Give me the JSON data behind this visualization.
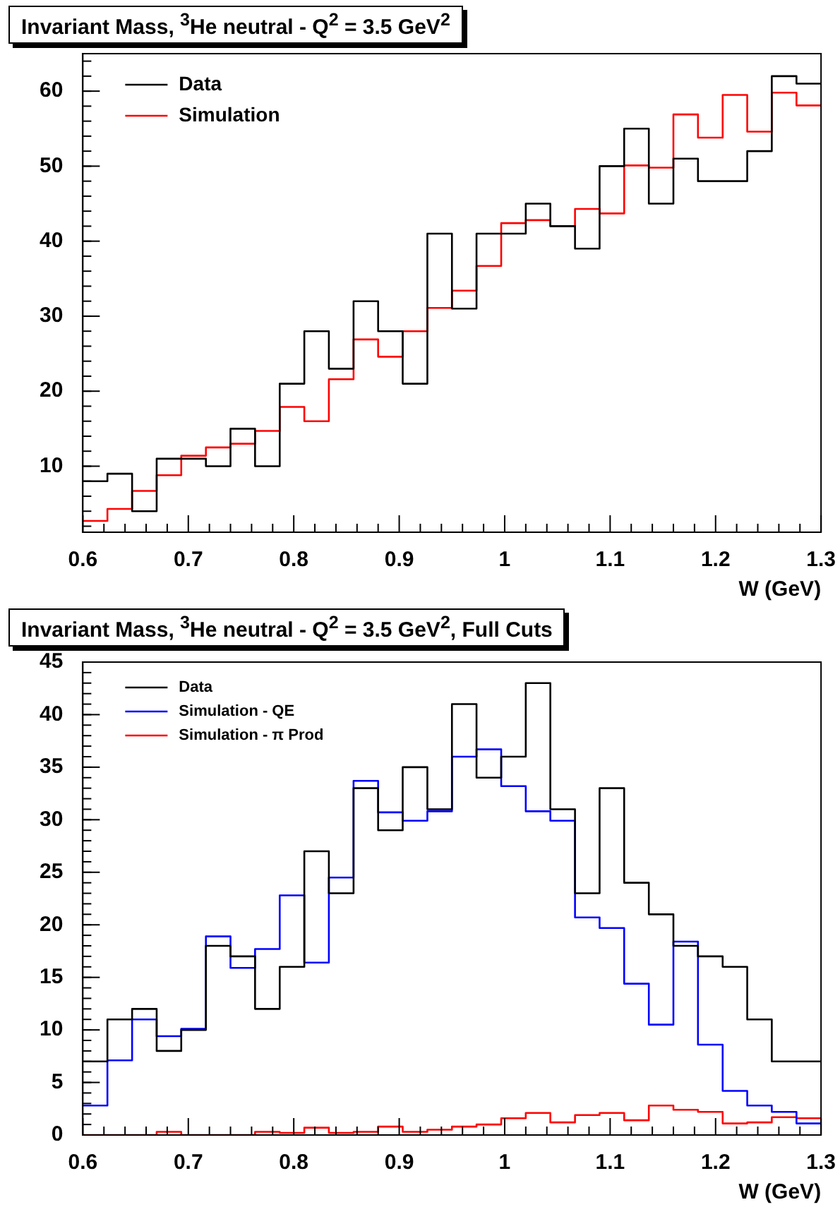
{
  "chart_data": [
    {
      "type": "histogram",
      "title": "Invariant Mass,  $^{3}$He neutral - Q$^{2}$ = 3.5 GeV$^{2}$",
      "xlabel": "W (GeV)",
      "bins": [
        0.6,
        0.6233,
        0.6467,
        0.67,
        0.6933,
        0.7167,
        0.74,
        0.7633,
        0.7867,
        0.81,
        0.8333,
        0.8567,
        0.88,
        0.9033,
        0.9267,
        0.95,
        0.9733,
        0.9967,
        1.02,
        1.0433,
        1.0667,
        1.09,
        1.1133,
        1.1367,
        1.16,
        1.1833,
        1.2067,
        1.23,
        1.2533,
        1.2767,
        1.3
      ],
      "series": [
        {
          "name": "Data",
          "color": "#000000",
          "values": [
            8,
            9,
            4,
            11,
            11,
            10,
            15,
            10,
            21,
            28,
            23,
            32,
            28,
            21,
            41,
            31,
            41,
            41,
            45,
            42,
            39,
            50,
            55,
            45,
            51,
            48,
            48,
            52,
            62,
            61
          ]
        },
        {
          "name": "Simulation",
          "color": "#ff0000",
          "values": [
            2.7,
            4.3,
            6.7,
            8.8,
            11.4,
            12.5,
            13,
            14.7,
            17.9,
            16,
            21.6,
            26.9,
            24.6,
            28,
            31.1,
            33.4,
            36.7,
            42.4,
            42.8,
            42,
            44.3,
            43.7,
            50.1,
            49.8,
            56.9,
            53.8,
            59.5,
            54.6,
            59.8,
            58.1
          ]
        }
      ],
      "xlim": [
        0.6,
        1.3
      ],
      "xticks": [
        0.6,
        0.7,
        0.8,
        0.9,
        {
          "value": 1,
          "label": "1"
        },
        1.1,
        1.2,
        1.3
      ],
      "ylim": [
        1.2,
        65
      ],
      "yticks": [
        10,
        20,
        30,
        40,
        50,
        60
      ],
      "legend": "top left"
    },
    {
      "type": "histogram",
      "title": "Invariant Mass,  $^{3}$He neutral - Q$^{2}$ = 3.5 GeV$^{2}$, Full Cuts",
      "xlabel": "W (GeV)",
      "bins": [
        0.6,
        0.6233,
        0.6467,
        0.67,
        0.6933,
        0.7167,
        0.74,
        0.7633,
        0.7867,
        0.81,
        0.8333,
        0.8567,
        0.88,
        0.9033,
        0.9267,
        0.95,
        0.9733,
        0.9967,
        1.02,
        1.0433,
        1.0667,
        1.09,
        1.1133,
        1.1367,
        1.16,
        1.1833,
        1.2067,
        1.23,
        1.2533,
        1.2767,
        1.3
      ],
      "series": [
        {
          "name": "Data",
          "color": "#000000",
          "values": [
            7,
            11,
            12,
            8,
            10,
            18,
            17,
            12,
            16,
            27,
            23,
            33,
            29,
            35,
            31,
            41,
            34,
            36,
            43,
            31,
            23,
            33,
            24,
            21,
            18,
            17,
            16,
            11,
            7,
            7
          ]
        },
        {
          "name": "Simulation - QE",
          "color": "#0000ff",
          "values": [
            2.8,
            7.1,
            11,
            9.4,
            10.1,
            18.9,
            15.9,
            17.7,
            22.8,
            16.4,
            24.5,
            33.7,
            30.7,
            29.9,
            30.8,
            36,
            36.7,
            33.2,
            30.8,
            29.9,
            20.7,
            19.7,
            14.4,
            10.5,
            18.4,
            8.6,
            4.2,
            2.8,
            2.2,
            1.1
          ]
        },
        {
          "name": "Simulation - π Prod",
          "color": "#ff0000",
          "values": [
            0,
            0,
            0,
            0.3,
            0,
            0,
            0,
            0.3,
            0.2,
            0.7,
            0.2,
            0.3,
            0.8,
            0.3,
            0.5,
            0.8,
            1,
            1.6,
            2.1,
            1.2,
            1.9,
            2.1,
            1.4,
            2.8,
            2.4,
            2.2,
            1.1,
            1.2,
            1.7,
            1.6
          ]
        }
      ],
      "xlim": [
        0.6,
        1.3
      ],
      "xticks": [
        0.6,
        0.7,
        0.8,
        0.9,
        {
          "value": 1,
          "label": "1"
        },
        1.1,
        1.2,
        1.3
      ],
      "ylim": [
        0,
        45
      ],
      "yticks": [
        0,
        5,
        10,
        15,
        20,
        25,
        30,
        35,
        40,
        45
      ],
      "legend": "top left"
    }
  ]
}
